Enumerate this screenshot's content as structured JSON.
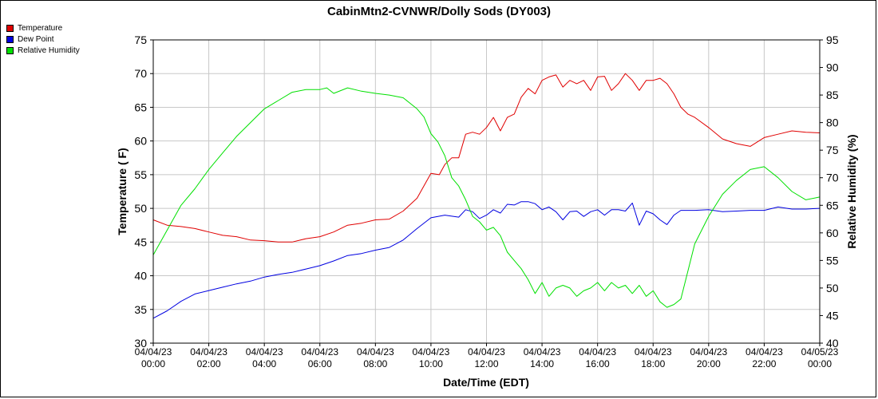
{
  "chart_data": {
    "type": "line",
    "title": "CabinMtn2-CVNWR/Dolly Sods (DY003)",
    "xlabel": "Date/Time (EDT)",
    "ylabel": "Temperature ( F)",
    "ylabel_right": "Relative Humidity (%)",
    "xlim": [
      0,
      24
    ],
    "ylim": [
      30,
      75
    ],
    "ylim_right": [
      40,
      95
    ],
    "grid": true,
    "legend_position": "top-left",
    "x_ticks": [
      {
        "x": 0,
        "date": "04/04/23",
        "time": "00:00"
      },
      {
        "x": 2,
        "date": "04/04/23",
        "time": "02:00"
      },
      {
        "x": 4,
        "date": "04/04/23",
        "time": "04:00"
      },
      {
        "x": 6,
        "date": "04/04/23",
        "time": "06:00"
      },
      {
        "x": 8,
        "date": "04/04/23",
        "time": "08:00"
      },
      {
        "x": 10,
        "date": "04/04/23",
        "time": "10:00"
      },
      {
        "x": 12,
        "date": "04/04/23",
        "time": "12:00"
      },
      {
        "x": 14,
        "date": "04/04/23",
        "time": "14:00"
      },
      {
        "x": 16,
        "date": "04/04/23",
        "time": "16:00"
      },
      {
        "x": 18,
        "date": "04/04/23",
        "time": "18:00"
      },
      {
        "x": 20,
        "date": "04/04/23",
        "time": "20:00"
      },
      {
        "x": 22,
        "date": "04/04/23",
        "time": "22:00"
      },
      {
        "x": 24,
        "date": "04/05/23",
        "time": "00:00"
      }
    ],
    "y_ticks": [
      30,
      35,
      40,
      45,
      50,
      55,
      60,
      65,
      70,
      75
    ],
    "y_ticks_right": [
      40,
      45,
      50,
      55,
      60,
      65,
      70,
      75,
      80,
      85,
      90,
      95
    ],
    "series": [
      {
        "name": "Temperature",
        "color": "#e00000",
        "axis": "left",
        "x": [
          0,
          0.5,
          1,
          1.5,
          2,
          2.5,
          3,
          3.5,
          4,
          4.5,
          5,
          5.5,
          6,
          6.5,
          7,
          7.5,
          8,
          8.5,
          9,
          9.5,
          10,
          10.3,
          10.5,
          10.75,
          11,
          11.25,
          11.5,
          11.75,
          12,
          12.25,
          12.5,
          12.75,
          13,
          13.25,
          13.5,
          13.75,
          14,
          14.25,
          14.5,
          14.75,
          15,
          15.25,
          15.5,
          15.75,
          16,
          16.25,
          16.5,
          16.75,
          17,
          17.25,
          17.5,
          17.75,
          18,
          18.25,
          18.5,
          18.75,
          19,
          19.25,
          19.5,
          20,
          20.5,
          21,
          21.5,
          22,
          22.5,
          23,
          23.5,
          24
        ],
        "values": [
          48.3,
          47.5,
          47.3,
          47.0,
          46.5,
          46.0,
          45.8,
          45.3,
          45.2,
          45.0,
          45.0,
          45.5,
          45.8,
          46.5,
          47.5,
          47.8,
          48.3,
          48.4,
          49.6,
          51.5,
          55.2,
          55.0,
          56.5,
          57.5,
          57.5,
          61.0,
          61.3,
          61.0,
          62.0,
          63.5,
          61.5,
          63.5,
          64.0,
          66.5,
          67.8,
          67.0,
          69.0,
          69.5,
          69.8,
          68.0,
          69.0,
          68.5,
          69.0,
          67.5,
          69.5,
          69.6,
          67.5,
          68.5,
          70.0,
          69.0,
          67.5,
          69.0,
          69.0,
          69.3,
          68.5,
          67.0,
          65.0,
          64.0,
          63.5,
          62.0,
          60.3,
          59.6,
          59.2,
          60.5,
          61.0,
          61.5,
          61.3,
          61.2
        ]
      },
      {
        "name": "Dew Point",
        "color": "#0000e0",
        "axis": "left",
        "x": [
          0,
          0.5,
          1,
          1.5,
          2,
          2.5,
          3,
          3.5,
          4,
          4.5,
          5,
          5.5,
          6,
          6.5,
          7,
          7.5,
          8,
          8.5,
          9,
          9.5,
          10,
          10.5,
          11,
          11.25,
          11.5,
          11.75,
          12,
          12.25,
          12.5,
          12.75,
          13,
          13.25,
          13.5,
          13.75,
          14,
          14.25,
          14.5,
          14.75,
          15,
          15.25,
          15.5,
          15.75,
          16,
          16.25,
          16.5,
          16.75,
          17,
          17.25,
          17.5,
          17.75,
          18,
          18.25,
          18.5,
          18.75,
          19,
          19.5,
          20,
          20.5,
          21,
          21.5,
          22,
          22.5,
          23,
          23.5,
          24
        ],
        "values": [
          33.7,
          34.8,
          36.2,
          37.3,
          37.8,
          38.3,
          38.8,
          39.2,
          39.8,
          40.2,
          40.5,
          41.0,
          41.5,
          42.2,
          43.0,
          43.3,
          43.8,
          44.2,
          45.3,
          47.0,
          48.6,
          49.0,
          48.7,
          49.8,
          49.5,
          48.5,
          49.0,
          49.8,
          49.3,
          50.6,
          50.5,
          51.0,
          51.0,
          50.7,
          49.8,
          50.2,
          49.5,
          48.3,
          49.5,
          49.6,
          48.8,
          49.5,
          49.8,
          49.0,
          49.8,
          49.8,
          49.6,
          50.8,
          47.5,
          49.6,
          49.2,
          48.3,
          47.6,
          49.0,
          49.7,
          49.7,
          49.8,
          49.5,
          49.6,
          49.7,
          49.7,
          50.2,
          49.9,
          49.9,
          50.0
        ]
      },
      {
        "name": "Relative Humidity",
        "color": "#00e000",
        "axis": "right",
        "x": [
          0,
          0.5,
          1,
          1.5,
          2,
          2.5,
          3,
          3.5,
          4,
          4.5,
          5,
          5.5,
          6,
          6.25,
          6.5,
          7,
          7.5,
          8,
          8.5,
          9,
          9.5,
          9.75,
          10,
          10.25,
          10.5,
          10.75,
          11,
          11.25,
          11.5,
          11.75,
          12,
          12.25,
          12.5,
          12.75,
          13,
          13.25,
          13.5,
          13.75,
          14,
          14.25,
          14.5,
          14.75,
          15,
          15.25,
          15.5,
          15.75,
          16,
          16.25,
          16.5,
          16.75,
          17,
          17.25,
          17.5,
          17.75,
          18,
          18.25,
          18.5,
          18.75,
          19,
          19.25,
          19.5,
          20,
          20.5,
          21,
          21.5,
          22,
          22.5,
          23,
          23.5,
          24
        ],
        "values": [
          56.0,
          60.5,
          65.0,
          68.0,
          71.5,
          74.5,
          77.5,
          80.0,
          82.5,
          84.0,
          85.5,
          86.0,
          86.0,
          86.3,
          85.3,
          86.3,
          85.7,
          85.3,
          85.0,
          84.5,
          82.5,
          81.0,
          78.0,
          76.5,
          74.0,
          70.0,
          68.5,
          66.0,
          63.0,
          62.0,
          60.5,
          61.0,
          59.5,
          56.5,
          55.0,
          53.5,
          51.5,
          49.0,
          51.0,
          48.5,
          50.0,
          50.5,
          50.0,
          48.5,
          49.5,
          50.0,
          51.0,
          49.5,
          51.0,
          50.0,
          50.5,
          49.0,
          50.5,
          48.5,
          49.5,
          47.5,
          46.5,
          47.0,
          48.0,
          53.0,
          58.0,
          63.0,
          67.0,
          69.5,
          71.5,
          72.0,
          70.0,
          67.5,
          66.0,
          66.5
        ]
      }
    ]
  }
}
